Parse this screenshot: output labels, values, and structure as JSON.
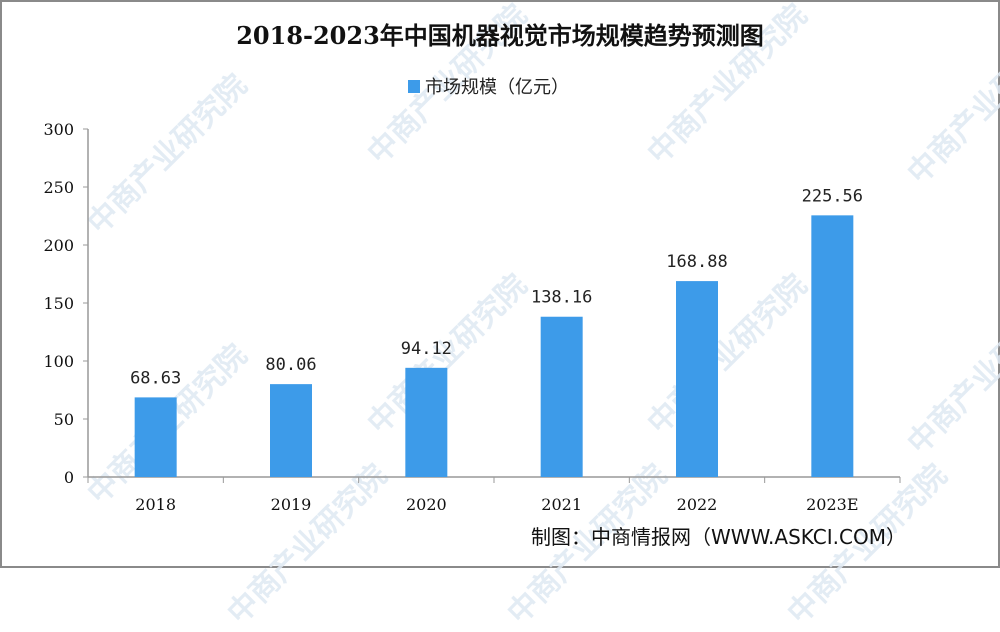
{
  "chart_data": {
    "type": "bar",
    "title": "2018-2023年中国机器视觉市场规模趋势预测图",
    "categories": [
      "2018",
      "2019",
      "2020",
      "2021",
      "2022",
      "2023E"
    ],
    "series": [
      {
        "name": "市场规模（亿元）",
        "values": [
          68.63,
          80.06,
          94.12,
          138.16,
          168.88,
          225.56
        ],
        "color": "#3d9be9"
      }
    ],
    "data_labels": [
      "68.63",
      "80.06",
      "94.12",
      "138.16",
      "168.88",
      "225.56"
    ],
    "ylim": [
      0,
      300
    ],
    "yticks": [
      0,
      50,
      100,
      150,
      200,
      250,
      300
    ],
    "grid": false,
    "legend_position": "top-center",
    "xlabel": "",
    "ylabel": ""
  },
  "source": "制图：中商情报网（WWW.ASKCI.COM）",
  "watermark": "中商产业研究院"
}
